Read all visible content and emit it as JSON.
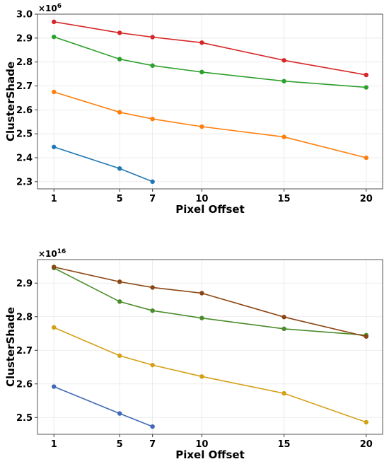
{
  "chart_data": [
    {
      "type": "line",
      "xlabel": "Pixel Offset",
      "ylabel": "ClusterShade",
      "scale_base": "×10",
      "scale_exp": "6",
      "x_ticks": [
        1,
        5,
        7,
        10,
        15,
        20
      ],
      "y_ticks": [
        "2.3",
        "2.4",
        "2.5",
        "2.6",
        "2.7",
        "2.8",
        "2.9",
        "3.0"
      ],
      "xlim": [
        0,
        21
      ],
      "ylim": [
        2.27,
        3.0
      ],
      "grid": true,
      "series": [
        {
          "color": "#1f77b4",
          "x": [
            1,
            5,
            7
          ],
          "values": [
            2.445,
            2.355,
            2.3
          ]
        },
        {
          "color": "#ff7f0e",
          "x": [
            1,
            5,
            7,
            10,
            15,
            20
          ],
          "values": [
            2.675,
            2.59,
            2.562,
            2.53,
            2.487,
            2.4
          ]
        },
        {
          "color": "#2ca02c",
          "x": [
            1,
            5,
            7,
            10,
            15,
            20
          ],
          "values": [
            2.905,
            2.812,
            2.785,
            2.758,
            2.72,
            2.694
          ]
        },
        {
          "color": "#d62728",
          "x": [
            1,
            5,
            7,
            10,
            15,
            20
          ],
          "values": [
            2.968,
            2.922,
            2.904,
            2.881,
            2.807,
            2.746
          ]
        }
      ]
    },
    {
      "type": "line",
      "xlabel": "Pixel Offset",
      "ylabel": "ClusterShade",
      "scale_base": "×10",
      "scale_exp": "16",
      "x_ticks": [
        1,
        5,
        7,
        10,
        15,
        20
      ],
      "y_ticks": [
        "2.5",
        "2.6",
        "2.7",
        "2.8",
        "2.9"
      ],
      "xlim": [
        0,
        21
      ],
      "ylim": [
        2.45,
        2.97
      ],
      "grid": true,
      "series": [
        {
          "color": "#4169b8",
          "x": [
            1,
            5,
            7
          ],
          "values": [
            2.592,
            2.512,
            2.473
          ]
        },
        {
          "color": "#d4a017",
          "x": [
            1,
            5,
            7,
            10,
            15,
            20
          ],
          "values": [
            2.768,
            2.684,
            2.656,
            2.622,
            2.572,
            2.486
          ]
        },
        {
          "color": "#4a8c2a",
          "x": [
            1,
            5,
            7,
            10,
            15,
            20
          ],
          "values": [
            2.945,
            2.845,
            2.818,
            2.796,
            2.764,
            2.745
          ]
        },
        {
          "color": "#8b4513",
          "x": [
            1,
            5,
            7,
            10,
            15,
            20
          ],
          "values": [
            2.948,
            2.904,
            2.887,
            2.87,
            2.799,
            2.741
          ]
        }
      ]
    }
  ]
}
